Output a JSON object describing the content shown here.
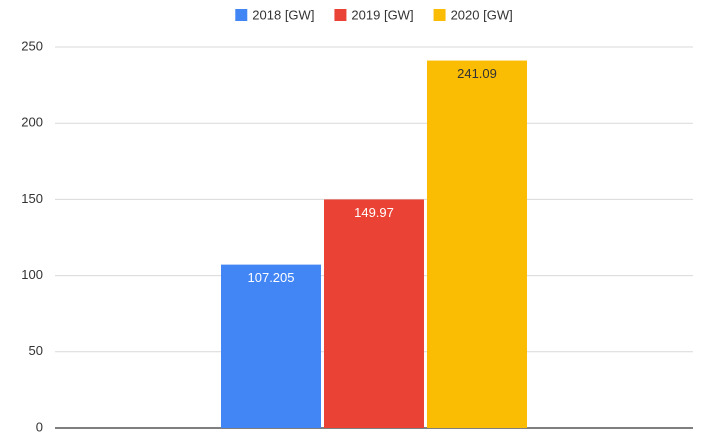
{
  "chart_data": {
    "type": "bar",
    "categories": [
      null
    ],
    "series": [
      {
        "name": "2018 [GW]",
        "color": "#4285f4",
        "values": [
          107.205
        ]
      },
      {
        "name": "2019 [GW]",
        "color": "#ea4335",
        "values": [
          149.97
        ]
      },
      {
        "name": "2020 [GW]",
        "color": "#fbbc04",
        "values": [
          241.09
        ]
      }
    ],
    "ylim": [
      0,
      250
    ],
    "yticks": [
      0,
      50,
      100,
      150,
      200,
      250
    ],
    "grid": true,
    "legend": "top"
  }
}
